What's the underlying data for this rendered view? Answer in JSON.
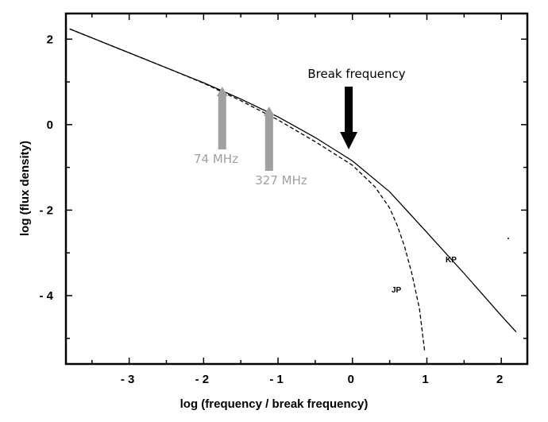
{
  "chart_data": {
    "type": "line",
    "title": "",
    "xlabel": "log (frequency / break frequency)",
    "ylabel": "log (flux density)",
    "xlim": [
      -3.85,
      2.35
    ],
    "ylim": [
      -5.6,
      2.6
    ],
    "xticks": [
      -3,
      -2,
      -1,
      0,
      1,
      2
    ],
    "xtick_labels": [
      "- 3",
      "- 2",
      "- 1",
      "0",
      "1",
      "2"
    ],
    "yticks": [
      2,
      0,
      -2,
      -4
    ],
    "ytick_labels": [
      "2",
      "0",
      "- 2",
      "- 4"
    ],
    "grid": false,
    "series": [
      {
        "name": "KP",
        "style": "solid",
        "x": [
          -3.8,
          -3.0,
          -2.5,
          -2.0,
          -1.5,
          -1.0,
          -0.5,
          0.0,
          0.5,
          1.0,
          1.5,
          2.0,
          2.2
        ],
        "y": [
          2.24,
          1.68,
          1.33,
          0.98,
          0.6,
          0.18,
          -0.3,
          -0.85,
          -1.57,
          -2.52,
          -3.48,
          -4.47,
          -4.85
        ]
      },
      {
        "name": "JP",
        "style": "dashed",
        "x": [
          -3.8,
          -3.0,
          -2.5,
          -2.0,
          -1.5,
          -1.0,
          -0.5,
          0.0,
          0.3,
          0.5,
          0.6,
          0.7,
          0.8,
          0.9,
          0.97
        ],
        "y": [
          2.24,
          1.68,
          1.33,
          0.97,
          0.56,
          0.11,
          -0.4,
          -0.95,
          -1.45,
          -1.95,
          -2.35,
          -2.85,
          -3.5,
          -4.3,
          -5.3
        ]
      }
    ],
    "annotations": {
      "break": {
        "text": "Break frequency",
        "x": -0.05
      },
      "mhz74": {
        "text": "74 MHz",
        "x": -1.75
      },
      "mhz327": {
        "text": "327 MHz",
        "x": -1.12
      }
    },
    "colors": {
      "line": "#000000",
      "arrow_grey": "#a0a0a0",
      "arrow_black": "#000000"
    }
  }
}
